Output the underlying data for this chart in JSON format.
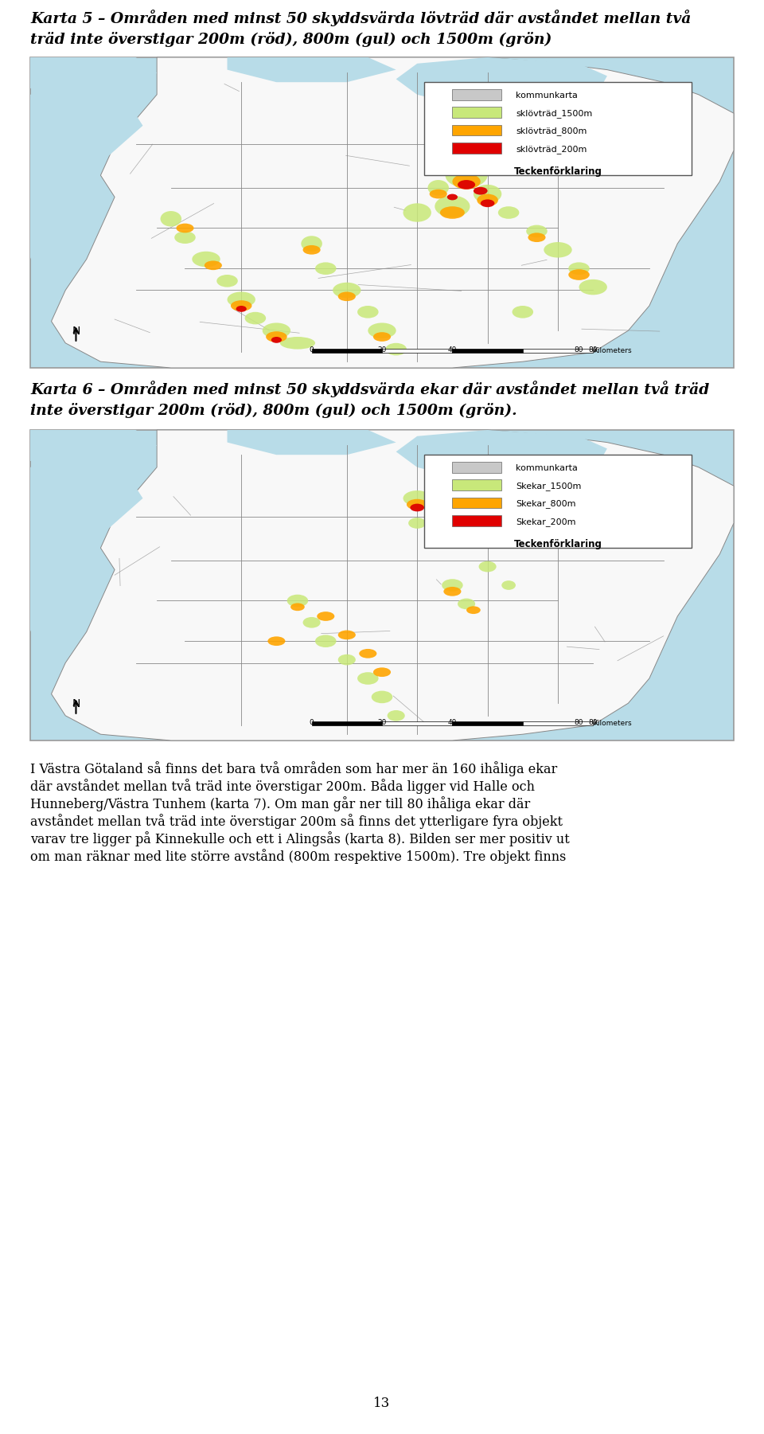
{
  "map1_title_line1": "Karta 5 – Områden med minst 50 skyddsvärda lövträd där avståndet mellan två",
  "map1_title_line2": "träd inte överstigar 200m (röd), 800m (gul) och 1500m (grön)",
  "map2_title_line1": "Karta 6 – Områden med minst 50 skyddsvärda ekar där avståndet mellan två träd",
  "map2_title_line2": "inte överstigar 200m (röd), 800m (gul) och 1500m (grön).",
  "legend1_title": "Teckenförklaring",
  "legend1_items": [
    "sklövträd_200m",
    "sklövträd_800m",
    "sklövträd_1500m",
    "kommunkarta"
  ],
  "legend1_colors": [
    "#e00000",
    "#ffa500",
    "#c8e87a",
    "#c8c8c8"
  ],
  "legend2_title": "Teckenförklaring",
  "legend2_items": [
    "Skekar_200m",
    "Skekar_800m",
    "Skekar_1500m",
    "kommunkarta"
  ],
  "legend2_colors": [
    "#e00000",
    "#ffa500",
    "#c8e87a",
    "#c8c8c8"
  ],
  "body_text_lines": [
    "I Västra Götaland så finns det bara två områden som har mer än 160 ihåliga ekar",
    "där avståndet mellan två träd inte överstigar 200m. Båda ligger vid Halle och",
    "Hunneberg/Västra Tunhem (karta 7). Om man går ner till 80 ihåliga ekar där",
    "avståndet mellan två träd inte överstigar 200m så finns det ytterligare fyra objekt",
    "varav tre ligger på Kinnekulle och ett i Alingsås (karta 8). Bilden ser mer positiv ut",
    "om man räknar med lite större avstånd (800m respektive 1500m). Tre objekt finns"
  ],
  "page_number": "13",
  "bg_color": "#ffffff",
  "water_color": "#b8dce8",
  "land_color": "#f8f8f8",
  "land_color2": "#e8e8e8",
  "boundary_color": "#888888",
  "map_border_color": "#999999",
  "title_fontsize": 13.5,
  "body_fontsize": 11.5,
  "legend_title_fontsize": 8.5,
  "legend_item_fontsize": 8.0,
  "scalebar_fontsize": 6.5,
  "north_fontsize": 10,
  "page_num_fontsize": 12
}
